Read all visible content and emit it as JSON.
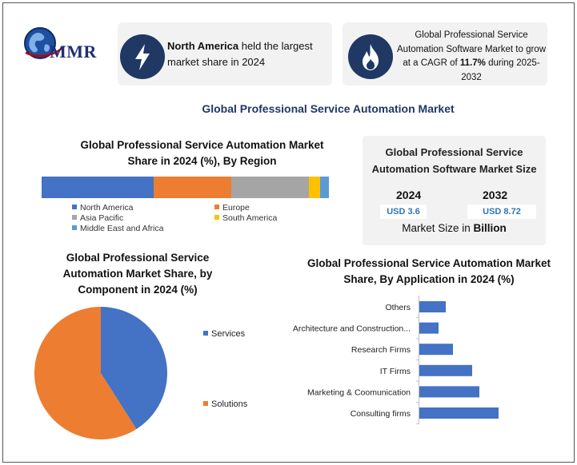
{
  "logo": {
    "text": "MMR"
  },
  "card1": {
    "highlight": "North America",
    "rest": " held the largest market share in 2024"
  },
  "card2": {
    "pre": "Global Professional Service Automation Software Market to grow at a CAGR of ",
    "cagr": "11.7%",
    "post": " during 2025-2032"
  },
  "main_title": "Global Professional Service Automation Market",
  "market_size": {
    "title": "Global Professional Service Automation Software Market Size",
    "year1": "2024",
    "value1": "USD 3.6",
    "year2": "2032",
    "value2": "USD 8.72",
    "caption_pre": "Market Size in ",
    "caption_bold": "Billion"
  },
  "chart_data": [
    {
      "type": "bar",
      "orientation": "horizontal-stacked-100",
      "title": "Global Professional Service Automation Market Share in 2024 (%), By Region",
      "series": [
        {
          "name": "North America",
          "value": 39,
          "color": "#4472c4"
        },
        {
          "name": "Europe",
          "value": 27,
          "color": "#ed7d31"
        },
        {
          "name": "Asia Pacific",
          "value": 27,
          "color": "#a5a5a5"
        },
        {
          "name": "South America",
          "value": 4,
          "color": "#ffc000"
        },
        {
          "name": "Middle East and Africa",
          "value": 3,
          "color": "#5b9bd5"
        }
      ],
      "legend": "bottom"
    },
    {
      "type": "pie",
      "title": "Global Professional Service Automation Market Share, by Component in 2024 (%)",
      "slices": [
        {
          "name": "Services",
          "value": 41,
          "color": "#4472c4"
        },
        {
          "name": "Solutions",
          "value": 59,
          "color": "#ed7d31"
        }
      ],
      "legend": "right"
    },
    {
      "type": "bar",
      "orientation": "horizontal",
      "title": "Global Professional Service Automation Market Share, By Application in 2024 (%)",
      "categories": [
        "Others",
        "Architecture and Construction...",
        "Research Firms",
        "IT Firms",
        "Marketing & Coomunication",
        "Consulting firms"
      ],
      "values": [
        11,
        8,
        14,
        22,
        25,
        33
      ],
      "color": "#4472c4",
      "xlim": [
        0,
        35
      ]
    }
  ]
}
